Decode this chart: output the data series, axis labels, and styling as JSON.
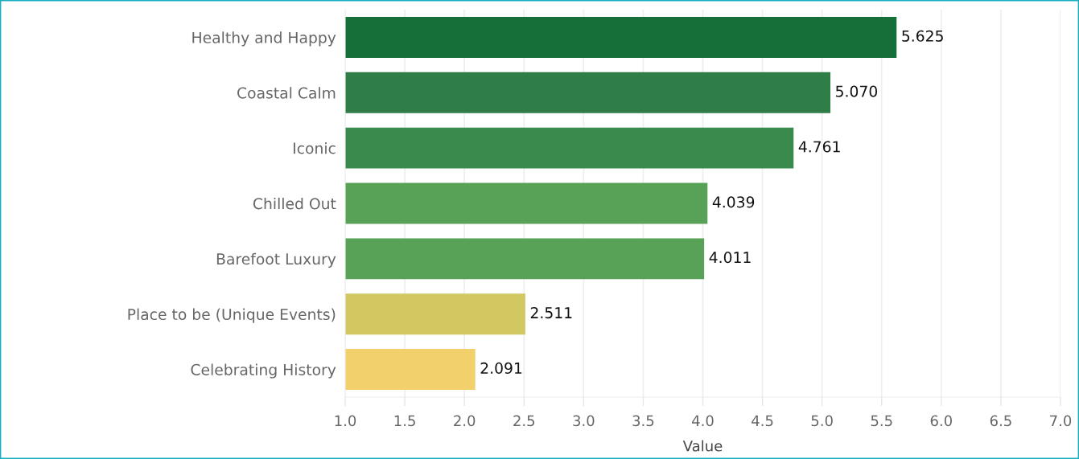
{
  "chart_data": {
    "type": "bar",
    "orientation": "horizontal",
    "categories": [
      "Healthy and Happy",
      "Coastal Calm",
      "Iconic",
      "Chilled Out",
      "Barefoot Luxury",
      "Place to be (Unique Events)",
      "Celebrating History"
    ],
    "values": [
      5.625,
      5.07,
      4.761,
      4.039,
      4.011,
      2.511,
      2.091
    ],
    "colors": [
      "#166e39",
      "#2f7e48",
      "#3b8a4d",
      "#58a257",
      "#58a257",
      "#d1c862",
      "#f2d06b"
    ],
    "value_labels": [
      "5.625",
      "5.070",
      "4.761",
      "4.039",
      "4.011",
      "2.511",
      "2.091"
    ],
    "xlabel": "Value",
    "xlim": [
      1,
      7
    ],
    "xticks": [
      {
        "value": 1,
        "label": "1.0"
      },
      1.5,
      {
        "value": 2,
        "label": "2.0"
      },
      2.5,
      {
        "value": 3,
        "label": "3.0"
      },
      3.5,
      {
        "value": 4,
        "label": "4.0"
      },
      4.5,
      {
        "value": 5,
        "label": "5.0"
      },
      5.5,
      {
        "value": 6,
        "label": "6.0"
      },
      6.5,
      {
        "value": 7,
        "label": "7.0"
      }
    ],
    "grid": "x"
  }
}
